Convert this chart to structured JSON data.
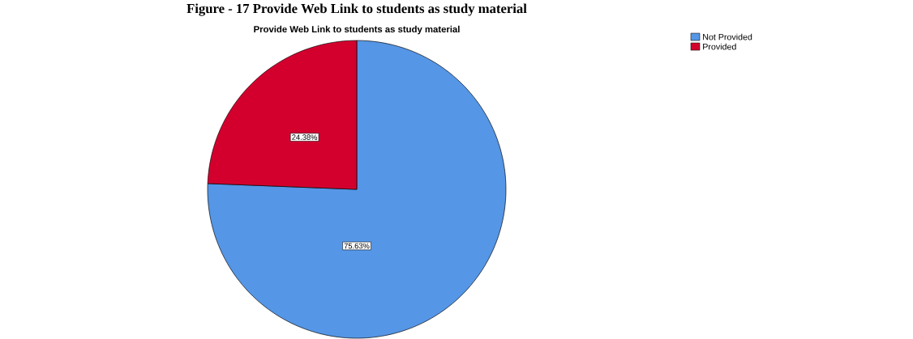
{
  "chart_data": {
    "type": "pie",
    "title": "Provide Web Link to students as study material",
    "annotations": [
      "Figure - 17     Provide Web Link to students as study material"
    ],
    "categories": [
      "Not Provided",
      "Provided"
    ],
    "values": [
      75.63,
      24.38
    ],
    "value_labels": [
      "75.63%",
      "24.38%"
    ],
    "colors": [
      "#5596e6",
      "#d3002e"
    ],
    "legend": "top right"
  }
}
